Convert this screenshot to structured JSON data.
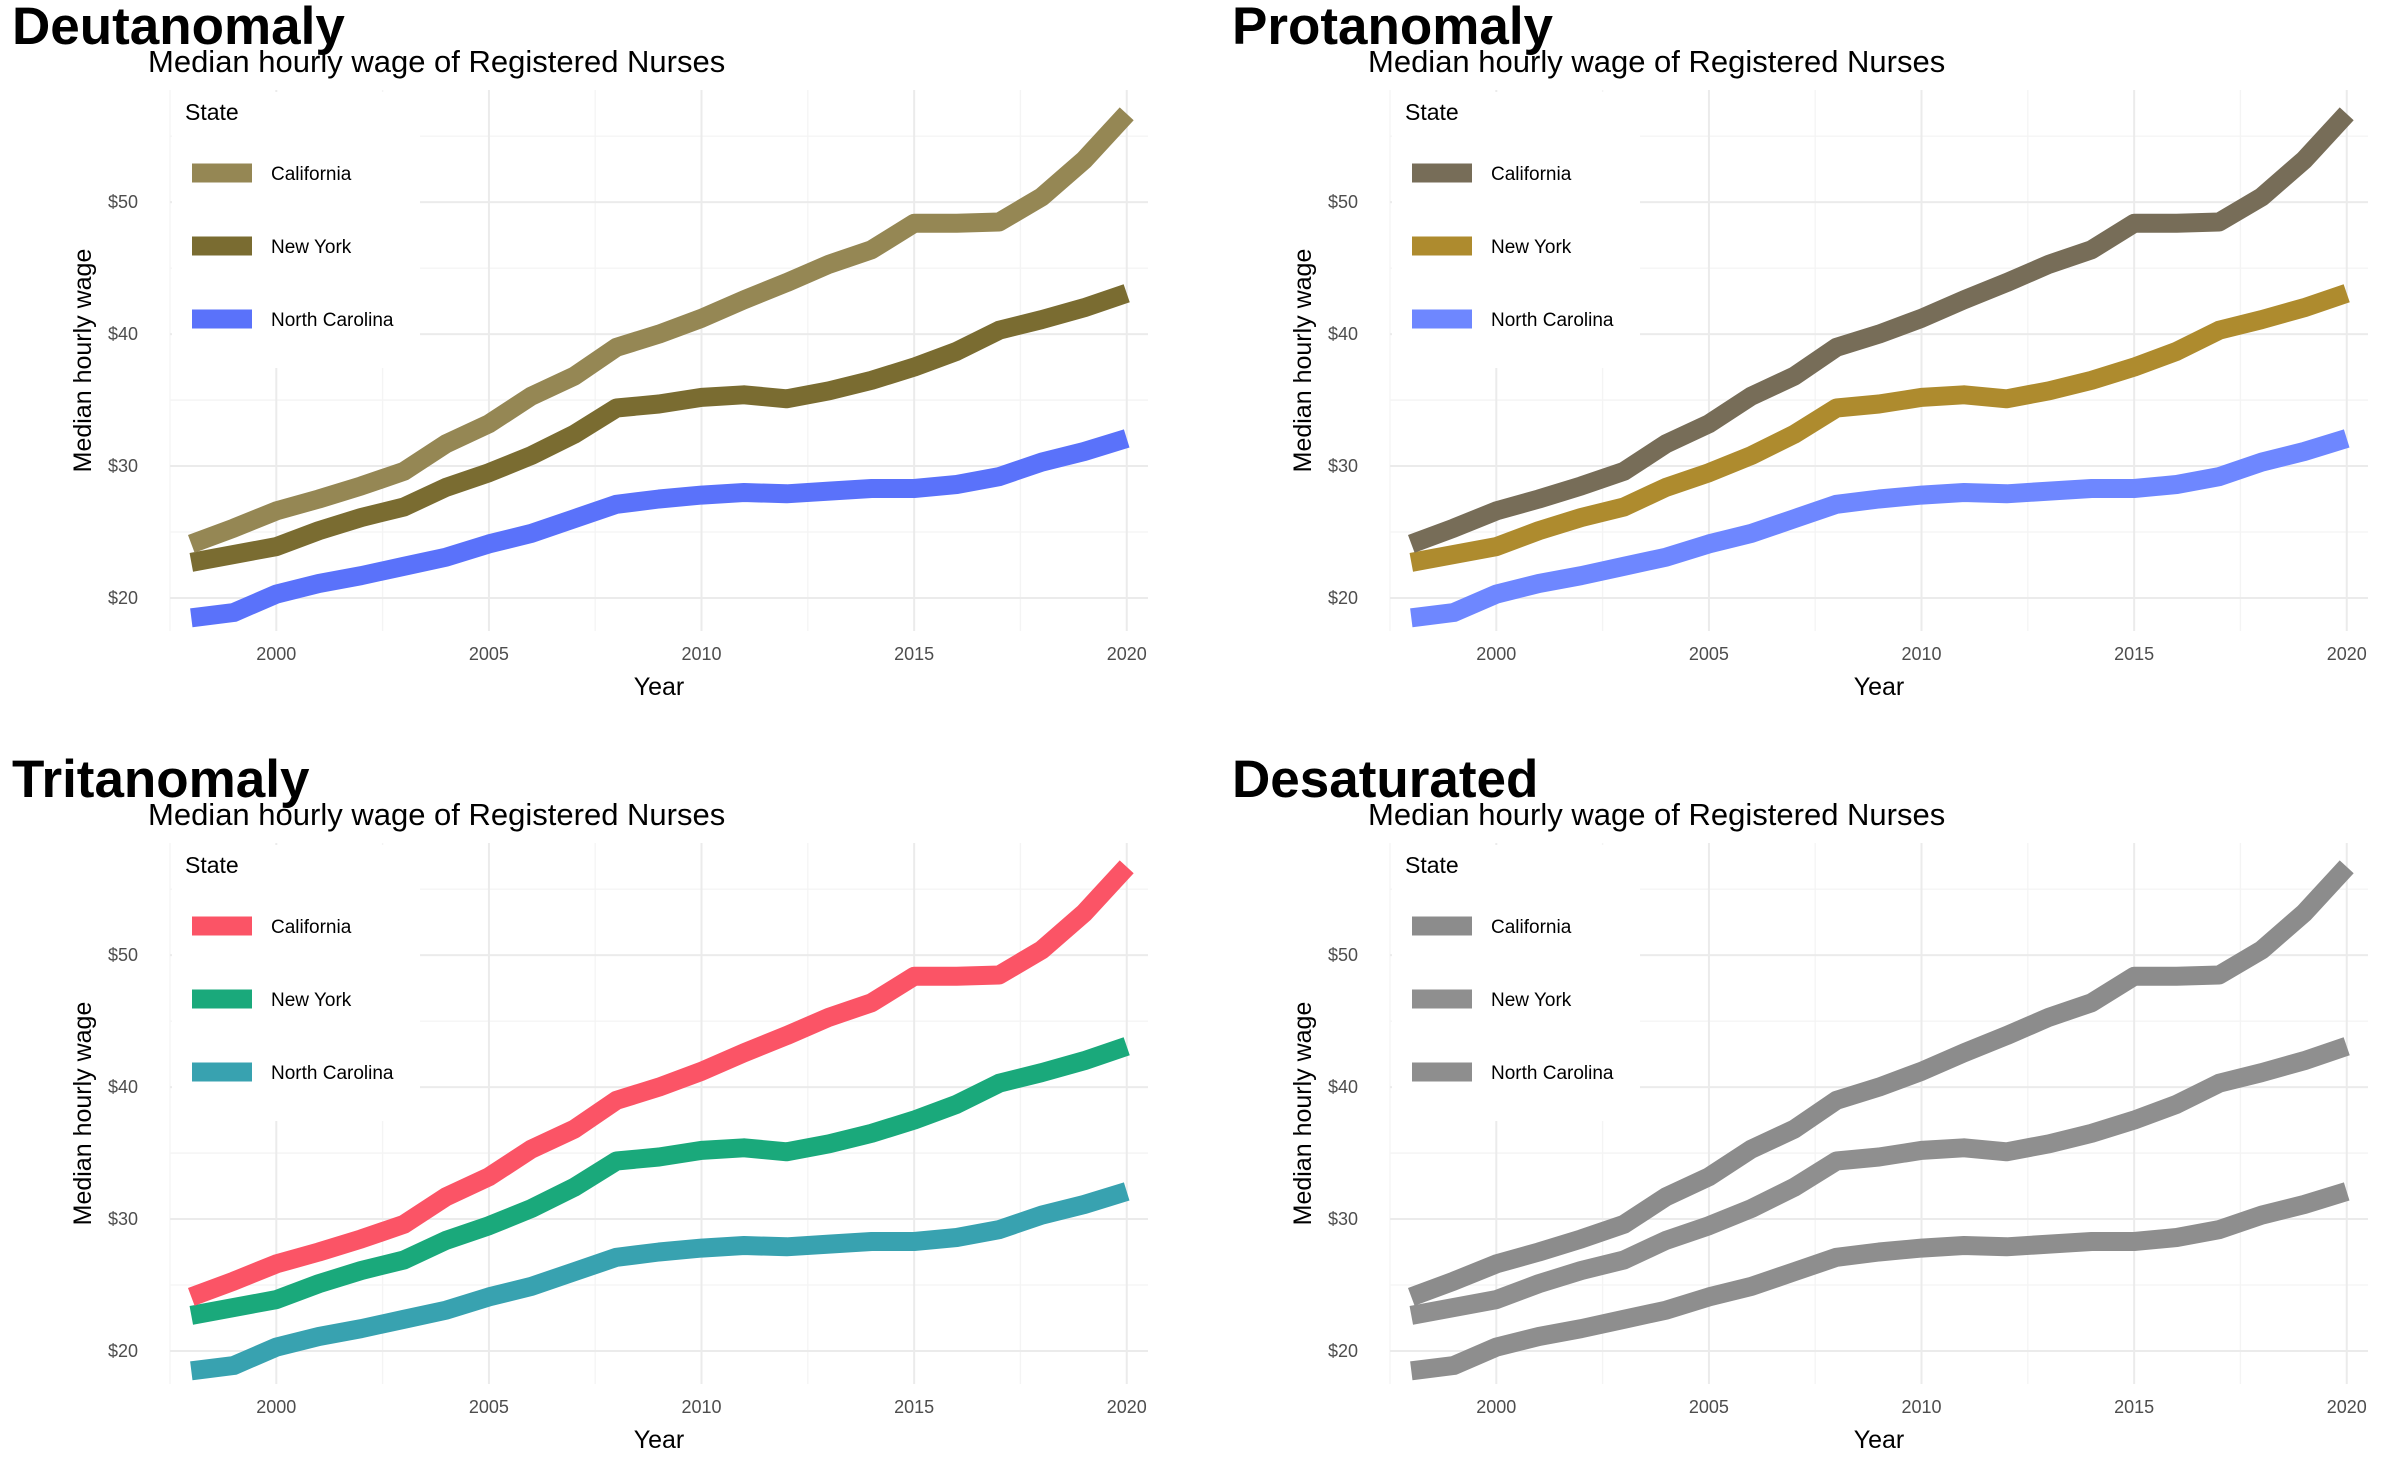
{
  "chart_data": [
    {
      "type": "line",
      "panel_title": "Deutanomaly",
      "title": "Median hourly wage of Registered Nurses",
      "xlabel": "Year",
      "ylabel": "Median hourly wage",
      "legend_title": "State",
      "legend_position": "top-left",
      "grid": true,
      "xlim": [
        1997.5,
        2020.5
      ],
      "ylim": [
        17.5,
        58.5
      ],
      "x_ticks": [
        2000,
        2005,
        2010,
        2015,
        2020
      ],
      "x_tick_labels": [
        "2000",
        "2005",
        "2010",
        "2015",
        "2020"
      ],
      "y_ticks": [
        20,
        30,
        40,
        50
      ],
      "y_tick_labels": [
        "$20",
        "$30",
        "$40",
        "$50"
      ],
      "x": [
        1998,
        1999,
        2000,
        2001,
        2002,
        2003,
        2004,
        2005,
        2006,
        2007,
        2008,
        2009,
        2010,
        2011,
        2012,
        2013,
        2014,
        2015,
        2016,
        2017,
        2018,
        2019,
        2020
      ],
      "series": [
        {
          "name": "California",
          "color": "#958754",
          "values": [
            24.1,
            25.3,
            26.6,
            27.5,
            28.5,
            29.6,
            31.7,
            33.2,
            35.3,
            36.8,
            39.0,
            40.0,
            41.2,
            42.6,
            43.9,
            45.3,
            46.4,
            48.4,
            48.4,
            48.5,
            50.4,
            53.2,
            56.7
          ]
        },
        {
          "name": "New York",
          "color": "#7a6c31",
          "values": [
            22.7,
            23.3,
            23.9,
            25.1,
            26.1,
            26.9,
            28.4,
            29.5,
            30.8,
            32.4,
            34.4,
            34.7,
            35.2,
            35.4,
            35.1,
            35.7,
            36.5,
            37.5,
            38.7,
            40.3,
            41.1,
            42.0,
            43.1
          ]
        },
        {
          "name": "North Carolina",
          "color": "#5a72fa",
          "values": [
            18.5,
            18.9,
            20.3,
            21.1,
            21.7,
            22.4,
            23.1,
            24.1,
            24.9,
            26.0,
            27.1,
            27.5,
            27.8,
            28.0,
            27.9,
            28.1,
            28.3,
            28.3,
            28.6,
            29.2,
            30.3,
            31.1,
            32.1
          ]
        }
      ]
    },
    {
      "type": "line",
      "panel_title": "Protanomaly",
      "title": "Median hourly wage of Registered Nurses",
      "xlabel": "Year",
      "ylabel": "Median hourly wage",
      "legend_title": "State",
      "legend_position": "top-left",
      "grid": true,
      "xlim": [
        1997.5,
        2020.5
      ],
      "ylim": [
        17.5,
        58.5
      ],
      "x_ticks": [
        2000,
        2005,
        2010,
        2015,
        2020
      ],
      "x_tick_labels": [
        "2000",
        "2005",
        "2010",
        "2015",
        "2020"
      ],
      "y_ticks": [
        20,
        30,
        40,
        50
      ],
      "y_tick_labels": [
        "$20",
        "$30",
        "$40",
        "$50"
      ],
      "x": [
        1998,
        1999,
        2000,
        2001,
        2002,
        2003,
        2004,
        2005,
        2006,
        2007,
        2008,
        2009,
        2010,
        2011,
        2012,
        2013,
        2014,
        2015,
        2016,
        2017,
        2018,
        2019,
        2020
      ],
      "series": [
        {
          "name": "California",
          "color": "#776d58",
          "values": [
            24.1,
            25.3,
            26.6,
            27.5,
            28.5,
            29.6,
            31.7,
            33.2,
            35.3,
            36.8,
            39.0,
            40.0,
            41.2,
            42.6,
            43.9,
            45.3,
            46.4,
            48.4,
            48.4,
            48.5,
            50.4,
            53.2,
            56.7
          ]
        },
        {
          "name": "New York",
          "color": "#ae8b2e",
          "values": [
            22.7,
            23.3,
            23.9,
            25.1,
            26.1,
            26.9,
            28.4,
            29.5,
            30.8,
            32.4,
            34.4,
            34.7,
            35.2,
            35.4,
            35.1,
            35.7,
            36.5,
            37.5,
            38.7,
            40.3,
            41.1,
            42.0,
            43.1
          ]
        },
        {
          "name": "North Carolina",
          "color": "#6e87ff",
          "values": [
            18.5,
            18.9,
            20.3,
            21.1,
            21.7,
            22.4,
            23.1,
            24.1,
            24.9,
            26.0,
            27.1,
            27.5,
            27.8,
            28.0,
            27.9,
            28.1,
            28.3,
            28.3,
            28.6,
            29.2,
            30.3,
            31.1,
            32.1
          ]
        }
      ]
    },
    {
      "type": "line",
      "panel_title": "Tritanomaly",
      "title": "Median hourly wage of Registered Nurses",
      "xlabel": "Year",
      "ylabel": "Median hourly wage",
      "legend_title": "State",
      "legend_position": "top-left",
      "grid": true,
      "xlim": [
        1997.5,
        2020.5
      ],
      "ylim": [
        17.5,
        58.5
      ],
      "x_ticks": [
        2000,
        2005,
        2010,
        2015,
        2020
      ],
      "x_tick_labels": [
        "2000",
        "2005",
        "2010",
        "2015",
        "2020"
      ],
      "y_ticks": [
        20,
        30,
        40,
        50
      ],
      "y_tick_labels": [
        "$20",
        "$30",
        "$40",
        "$50"
      ],
      "x": [
        1998,
        1999,
        2000,
        2001,
        2002,
        2003,
        2004,
        2005,
        2006,
        2007,
        2008,
        2009,
        2010,
        2011,
        2012,
        2013,
        2014,
        2015,
        2016,
        2017,
        2018,
        2019,
        2020
      ],
      "series": [
        {
          "name": "California",
          "color": "#fb5466",
          "values": [
            24.1,
            25.3,
            26.6,
            27.5,
            28.5,
            29.6,
            31.7,
            33.2,
            35.3,
            36.8,
            39.0,
            40.0,
            41.2,
            42.6,
            43.9,
            45.3,
            46.4,
            48.4,
            48.4,
            48.5,
            50.4,
            53.2,
            56.7
          ]
        },
        {
          "name": "New York",
          "color": "#1aa97b",
          "values": [
            22.7,
            23.3,
            23.9,
            25.1,
            26.1,
            26.9,
            28.4,
            29.5,
            30.8,
            32.4,
            34.4,
            34.7,
            35.2,
            35.4,
            35.1,
            35.7,
            36.5,
            37.5,
            38.7,
            40.3,
            41.1,
            42.0,
            43.1
          ]
        },
        {
          "name": "North Carolina",
          "color": "#38a2b0",
          "values": [
            18.5,
            18.9,
            20.3,
            21.1,
            21.7,
            22.4,
            23.1,
            24.1,
            24.9,
            26.0,
            27.1,
            27.5,
            27.8,
            28.0,
            27.9,
            28.1,
            28.3,
            28.3,
            28.6,
            29.2,
            30.3,
            31.1,
            32.1
          ]
        }
      ]
    },
    {
      "type": "line",
      "panel_title": "Desaturated",
      "title": "Median hourly wage of Registered Nurses",
      "xlabel": "Year",
      "ylabel": "Median hourly wage",
      "legend_title": "State",
      "legend_position": "top-left",
      "grid": true,
      "xlim": [
        1997.5,
        2020.5
      ],
      "ylim": [
        17.5,
        58.5
      ],
      "x_ticks": [
        2000,
        2005,
        2010,
        2015,
        2020
      ],
      "x_tick_labels": [
        "2000",
        "2005",
        "2010",
        "2015",
        "2020"
      ],
      "y_ticks": [
        20,
        30,
        40,
        50
      ],
      "y_tick_labels": [
        "$20",
        "$30",
        "$40",
        "$50"
      ],
      "x": [
        1998,
        1999,
        2000,
        2001,
        2002,
        2003,
        2004,
        2005,
        2006,
        2007,
        2008,
        2009,
        2010,
        2011,
        2012,
        2013,
        2014,
        2015,
        2016,
        2017,
        2018,
        2019,
        2020
      ],
      "series": [
        {
          "name": "California",
          "color": "#8c8c8c",
          "values": [
            24.1,
            25.3,
            26.6,
            27.5,
            28.5,
            29.6,
            31.7,
            33.2,
            35.3,
            36.8,
            39.0,
            40.0,
            41.2,
            42.6,
            43.9,
            45.3,
            46.4,
            48.4,
            48.4,
            48.5,
            50.4,
            53.2,
            56.7
          ]
        },
        {
          "name": "New York",
          "color": "#8f8f8f",
          "values": [
            22.7,
            23.3,
            23.9,
            25.1,
            26.1,
            26.9,
            28.4,
            29.5,
            30.8,
            32.4,
            34.4,
            34.7,
            35.2,
            35.4,
            35.1,
            35.7,
            36.5,
            37.5,
            38.7,
            40.3,
            41.1,
            42.0,
            43.1
          ]
        },
        {
          "name": "North Carolina",
          "color": "#8e8e8e",
          "values": [
            18.5,
            18.9,
            20.3,
            21.1,
            21.7,
            22.4,
            23.1,
            24.1,
            24.9,
            26.0,
            27.1,
            27.5,
            27.8,
            28.0,
            27.9,
            28.1,
            28.3,
            28.3,
            28.6,
            29.2,
            30.3,
            31.1,
            32.1
          ]
        }
      ]
    }
  ]
}
